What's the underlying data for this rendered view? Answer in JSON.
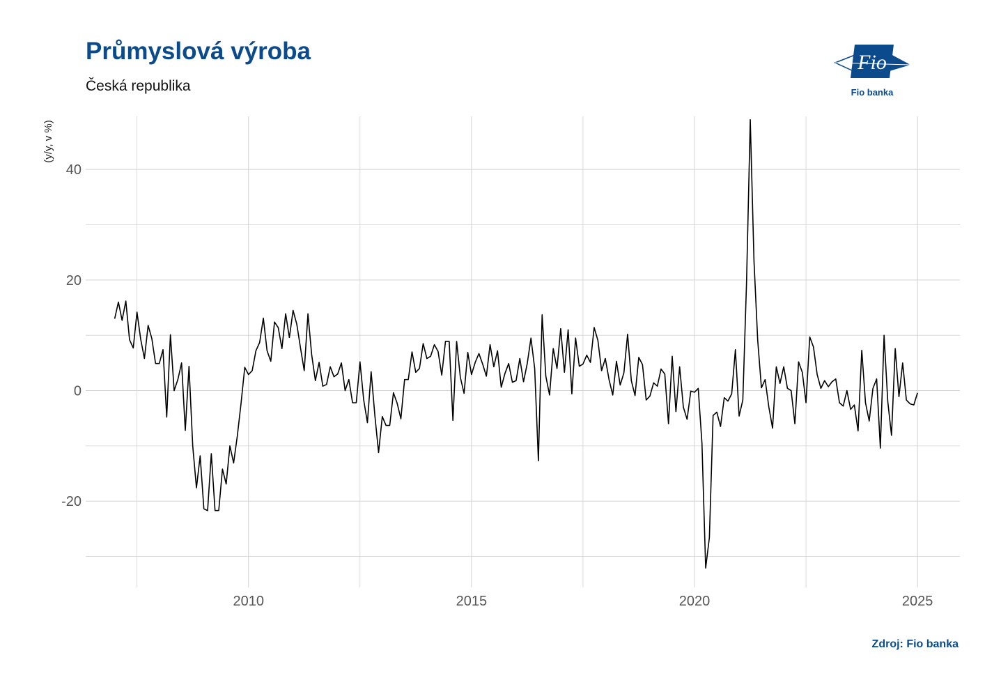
{
  "title": "Průmyslová výroba",
  "subtitle": "Česká republika",
  "source": "Zdroj: Fio banka",
  "logo": {
    "mark": "Fio",
    "caption": "Fio banka",
    "icon": "fio-logo-icon",
    "color": "#0b4a8b"
  },
  "colors": {
    "brand": "#0b4a8b",
    "line": "#000000",
    "grid": "#d3d3d3"
  },
  "chart_data": {
    "type": "line",
    "title": "Průmyslová výroba",
    "subtitle": "Česká republika",
    "ylabel": "(y/y, v %)",
    "xlabel": "",
    "xlim": [
      2006.35,
      2025.95
    ],
    "ylim": [
      -35.6,
      49.6
    ],
    "x_ticks": [
      2010,
      2015,
      2020,
      2025
    ],
    "x_tick_labels": [
      "2010",
      "2015",
      "2020",
      "2025"
    ],
    "y_ticks": [
      -20,
      0,
      20,
      40
    ],
    "y_tick_labels": [
      "-20",
      "0",
      "20",
      "40"
    ],
    "grid": true,
    "legend": "none",
    "series": [
      {
        "start": "2007-01",
        "frequency": "monthly",
        "values": [
          13.0,
          16.0,
          12.7,
          16.2,
          9.2,
          7.7,
          14.2,
          9.3,
          5.8,
          11.8,
          9.4,
          4.9,
          4.9,
          7.4,
          -4.8,
          10.1,
          0.0,
          2.0,
          5.0,
          -7.2,
          4.4,
          -10.0,
          -17.6,
          -11.8,
          -21.4,
          -21.7,
          -11.4,
          -21.7,
          -21.7,
          -14.2,
          -16.9,
          -10.0,
          -13.1,
          -8.2,
          -2.3,
          4.2,
          2.9,
          3.6,
          7.2,
          8.7,
          13.1,
          7.2,
          5.3,
          12.4,
          11.4,
          7.6,
          13.9,
          9.6,
          14.5,
          12.0,
          7.7,
          3.6,
          13.9,
          6.5,
          1.8,
          5.1,
          0.8,
          1.1,
          4.3,
          2.5,
          3.0,
          5.0,
          0.0,
          2.0,
          -2.2,
          -2.2,
          5.2,
          -1.7,
          -5.8,
          3.4,
          -4.5,
          -11.2,
          -4.7,
          -6.3,
          -6.3,
          -0.4,
          -2.3,
          -5.1,
          2.0,
          2.0,
          7.0,
          3.3,
          4.0,
          8.5,
          5.8,
          6.2,
          8.3,
          7.1,
          2.8,
          8.9,
          8.9,
          -5.4,
          8.9,
          2.4,
          -0.5,
          6.9,
          2.9,
          5.1,
          6.7,
          4.8,
          2.6,
          8.3,
          4.3,
          7.2,
          0.6,
          3.1,
          4.9,
          1.5,
          1.8,
          5.8,
          1.6,
          4.9,
          9.5,
          4.0,
          -12.7,
          13.7,
          2.6,
          -0.8,
          7.6,
          4.0,
          11.2,
          3.3,
          11.0,
          -0.6,
          9.5,
          4.4,
          4.8,
          6.4,
          5.1,
          11.4,
          9.1,
          3.6,
          5.8,
          2.0,
          -0.8,
          5.3,
          1.0,
          3.2,
          10.2,
          1.8,
          -0.9,
          6.0,
          4.7,
          -1.7,
          -1.0,
          1.4,
          0.8,
          3.9,
          3.0,
          -6.0,
          6.2,
          -3.8,
          4.3,
          -3.0,
          -5.2,
          -0.1,
          -0.3,
          0.4,
          -9.5,
          -32.1,
          -26.6,
          -4.5,
          -3.9,
          -6.5,
          -1.3,
          -1.9,
          -0.6,
          7.4,
          -4.6,
          -1.7,
          19.6,
          49.0,
          23.5,
          9.1,
          0.5,
          2.0,
          -3.0,
          -6.8,
          4.3,
          1.3,
          4.3,
          0.4,
          0.0,
          -6.0,
          5.2,
          3.3,
          -2.2,
          9.7,
          7.9,
          2.9,
          0.4,
          1.8,
          0.7,
          1.6,
          2.1,
          -2.2,
          -2.8,
          0.0,
          -3.4,
          -2.6,
          -7.3,
          7.3,
          -2.2,
          -5.5,
          0.4,
          2.1,
          -10.4,
          10.0,
          -2.0,
          -8.1,
          7.6,
          -1.1,
          5.0,
          -1.7,
          -2.4,
          -2.6,
          -0.4
        ]
      }
    ]
  }
}
